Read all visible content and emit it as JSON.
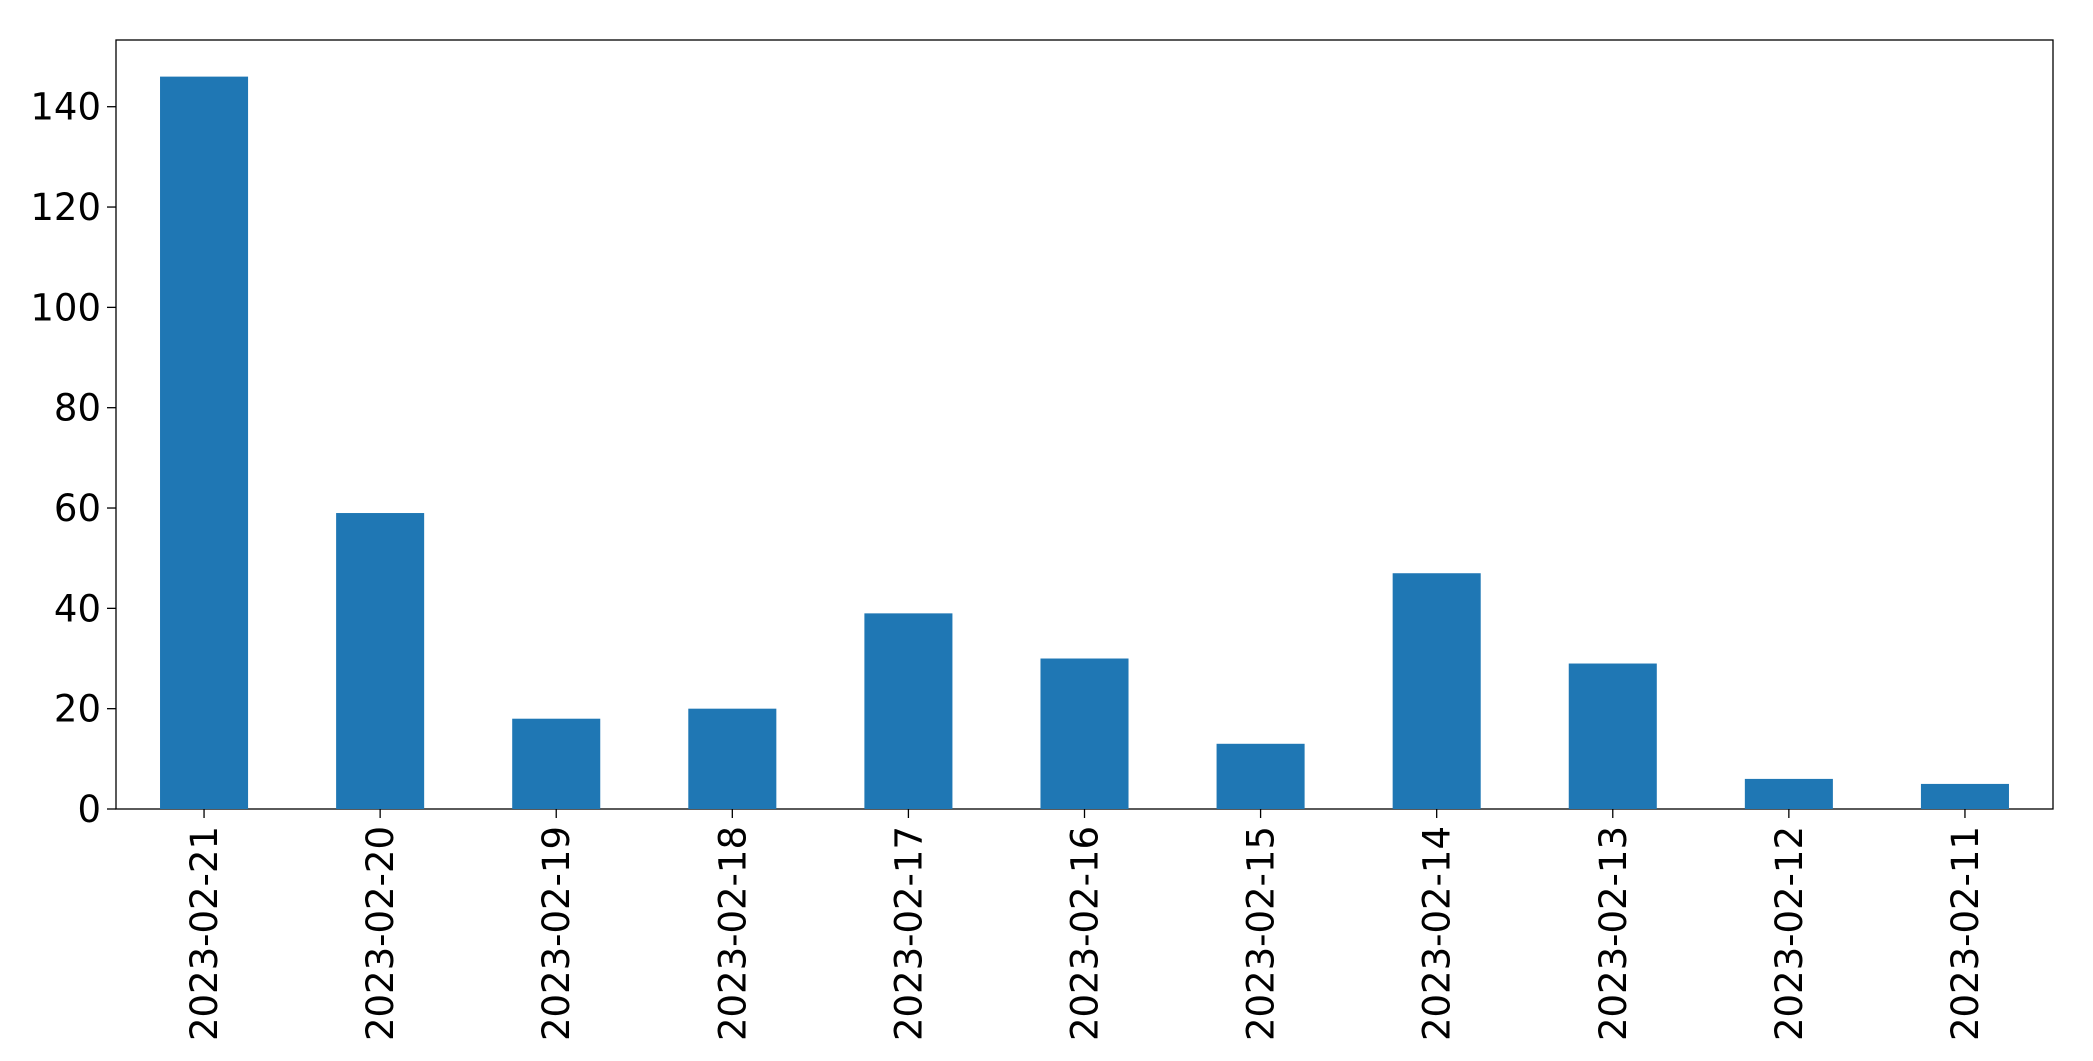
{
  "chart_data": {
    "type": "bar",
    "categories": [
      "2023-02-21",
      "2023-02-20",
      "2023-02-19",
      "2023-02-18",
      "2023-02-17",
      "2023-02-16",
      "2023-02-15",
      "2023-02-14",
      "2023-02-13",
      "2023-02-12",
      "2023-02-11"
    ],
    "values": [
      146,
      59,
      18,
      20,
      39,
      30,
      13,
      47,
      29,
      6,
      5
    ],
    "color": "#1f77b4",
    "ylim": [
      0,
      153.3
    ],
    "yticks": [
      0,
      20,
      40,
      60,
      80,
      100,
      120,
      140
    ],
    "grid": false
  }
}
